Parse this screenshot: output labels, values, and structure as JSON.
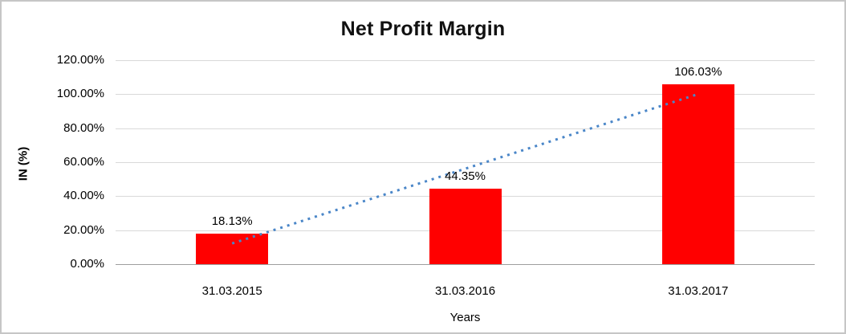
{
  "chart_data": {
    "type": "bar",
    "title": "Net Profit Margin",
    "xlabel": "Years",
    "ylabel": "IN (%)",
    "categories": [
      "31.03.2015",
      "31.03.2016",
      "31.03.2017"
    ],
    "series": [
      {
        "name": "Net Profit Margin",
        "values": [
          18.13,
          44.35,
          106.03
        ]
      }
    ],
    "data_labels": [
      "18.13%",
      "44.35%",
      "106.03%"
    ],
    "ylim": [
      0,
      120
    ],
    "ytick_step": 20,
    "yticks": [
      {
        "value": 0,
        "label": "0.00%"
      },
      {
        "value": 20,
        "label": "20.00%"
      },
      {
        "value": 40,
        "label": "40.00%"
      },
      {
        "value": 60,
        "label": "60.00%"
      },
      {
        "value": 80,
        "label": "80.00%"
      },
      {
        "value": 100,
        "label": "100.00%"
      },
      {
        "value": 120,
        "label": "120.00%"
      }
    ],
    "grid": true,
    "legend": "none",
    "colors": {
      "bar": "#ff0000",
      "trendline": "#4a86c8",
      "gridline": "#d9d9d9",
      "axis_line": "#9e9e9e",
      "text": "#000000"
    },
    "trendline": {
      "type": "linear",
      "style": "dotted",
      "start_value": 12.2,
      "end_value": 100.1
    }
  }
}
